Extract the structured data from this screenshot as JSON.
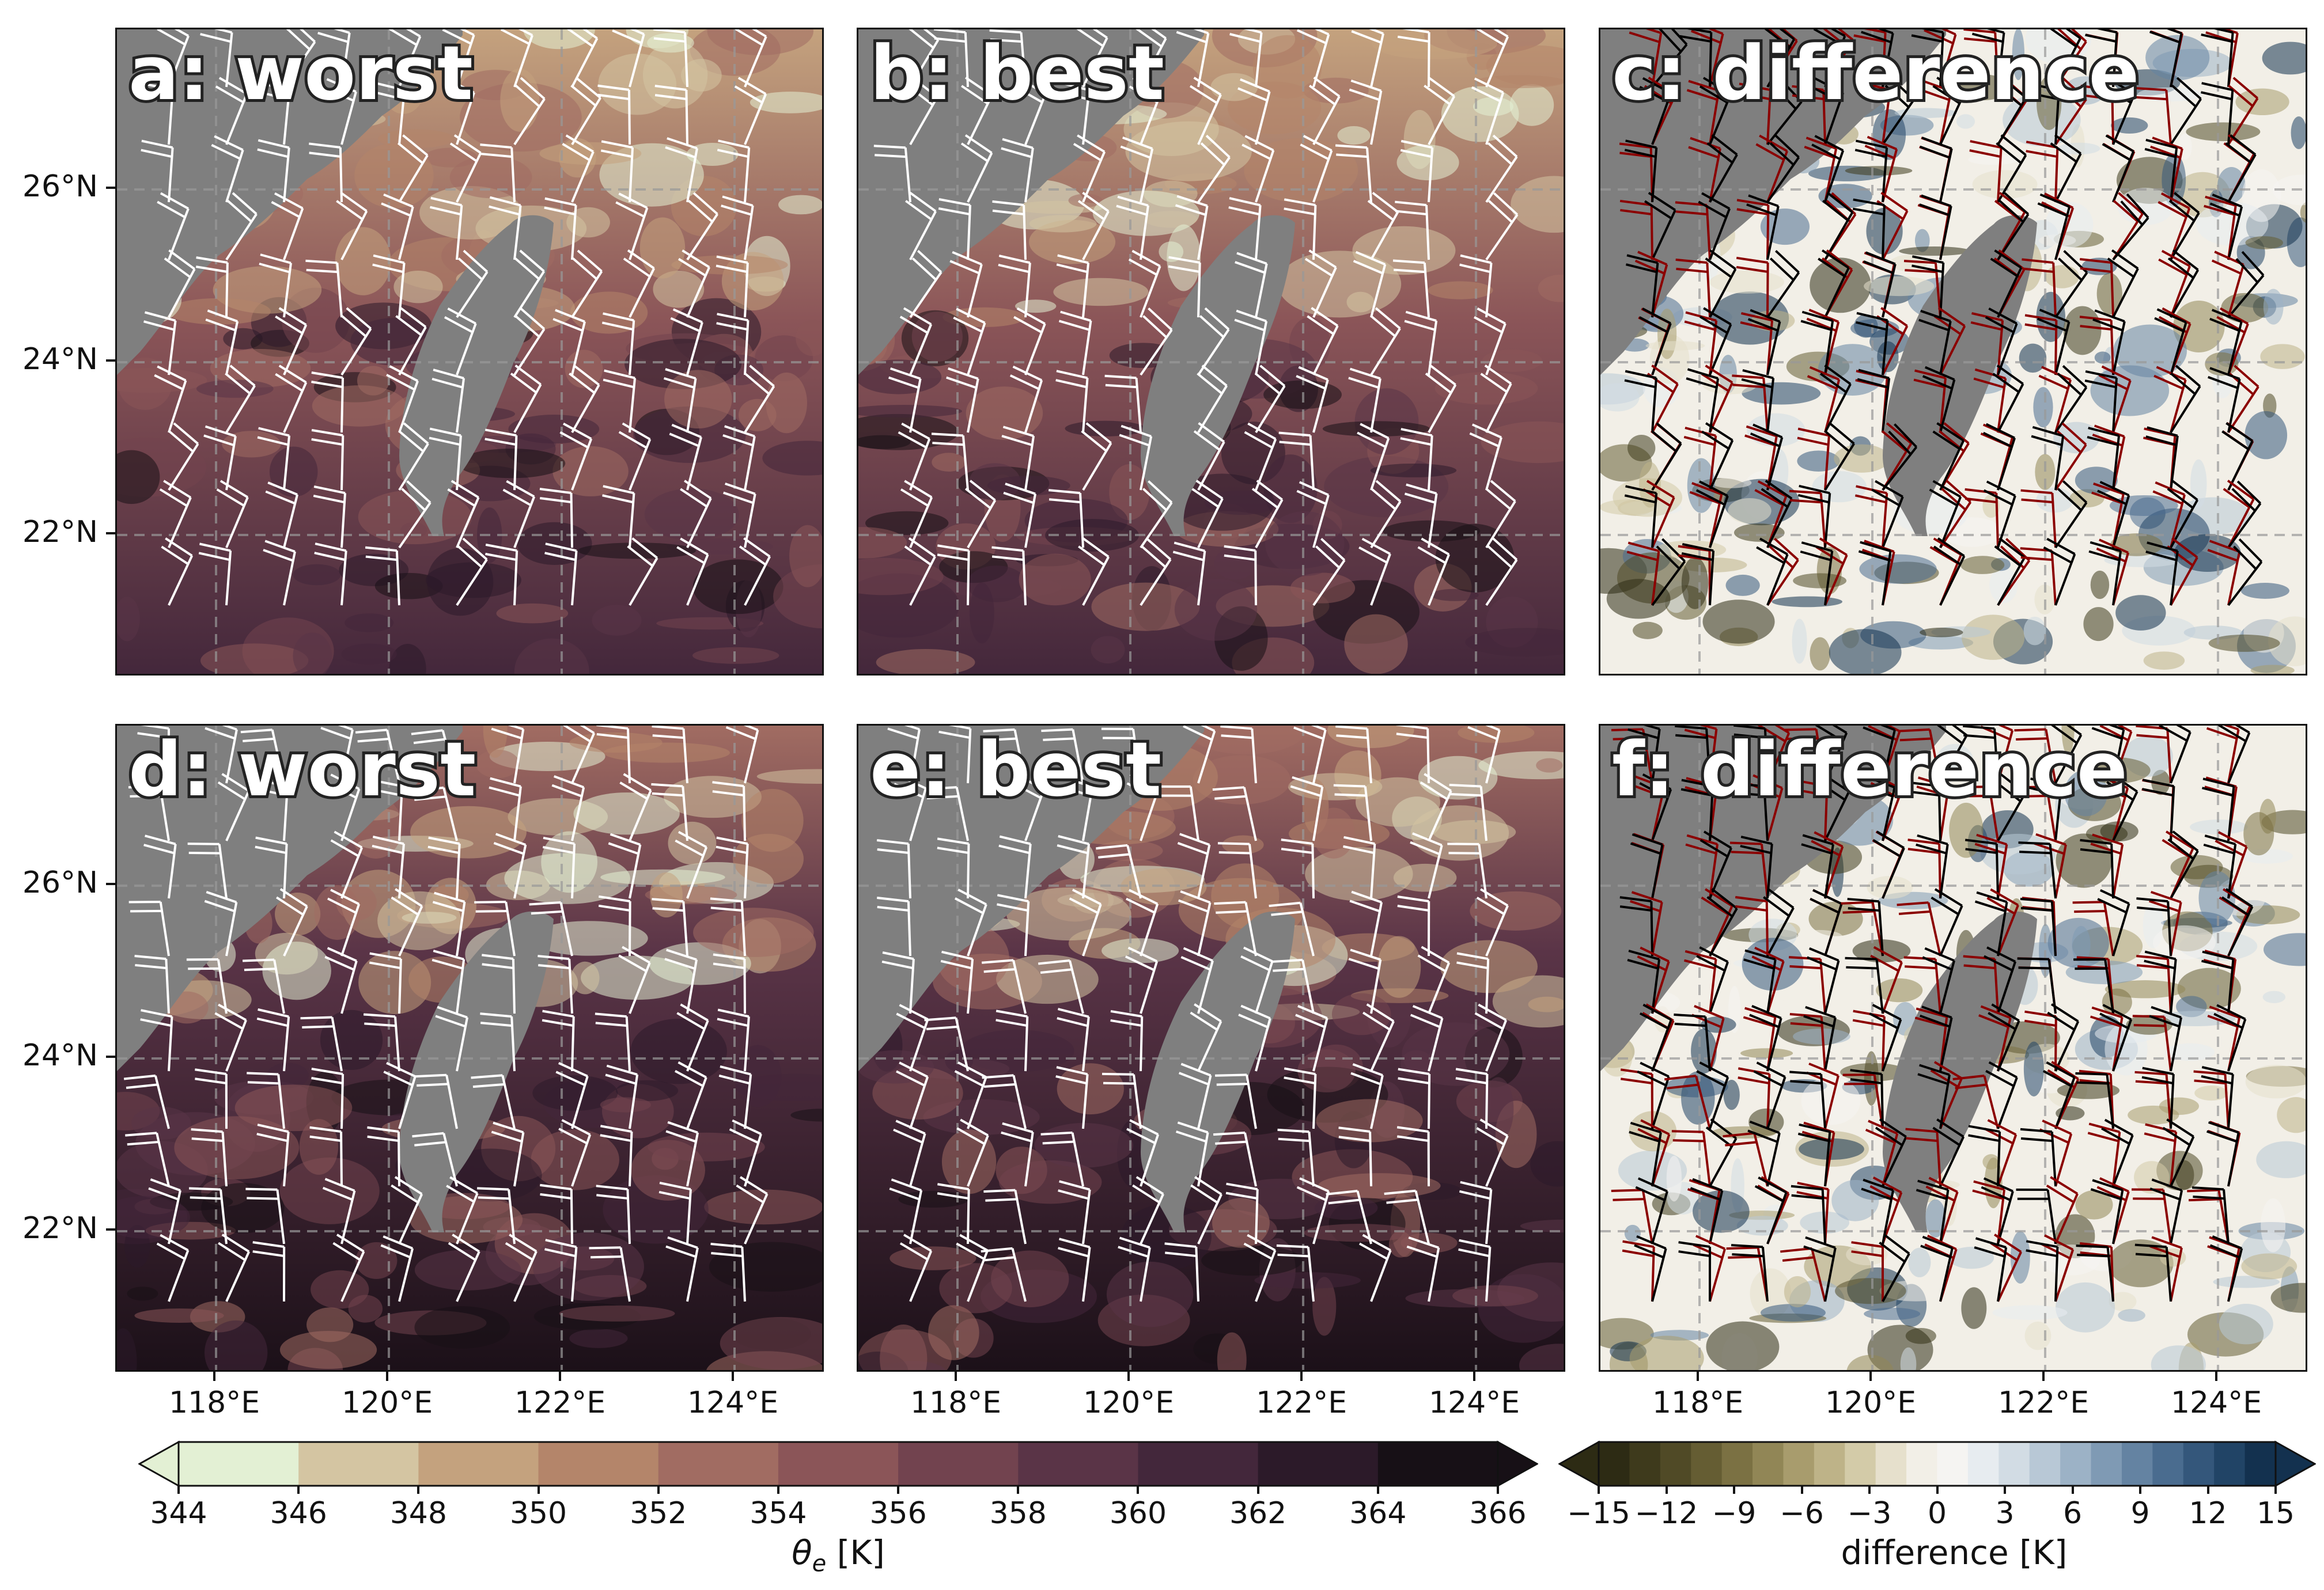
{
  "panels": [
    {
      "id": "a",
      "title": "a: worst",
      "kind": "theta"
    },
    {
      "id": "b",
      "title": "b: best",
      "kind": "theta"
    },
    {
      "id": "c",
      "title": "c: difference",
      "kind": "diff"
    },
    {
      "id": "d",
      "title": "d: worst",
      "kind": "theta"
    },
    {
      "id": "e",
      "title": "e: best",
      "kind": "theta"
    },
    {
      "id": "f",
      "title": "f: difference",
      "kind": "diff"
    }
  ],
  "axes": {
    "lat_labels": [
      "26°N",
      "24°N",
      "22°N"
    ],
    "lon_labels": [
      "118°E",
      "120°E",
      "122°E",
      "124°E"
    ]
  },
  "colorbars": {
    "theta": {
      "title": "θe [K]",
      "ticks": [
        "344",
        "346",
        "348",
        "350",
        "352",
        "354",
        "356",
        "358",
        "360",
        "362",
        "364",
        "366"
      ],
      "colors": [
        "#e3f0d4",
        "#d4c5a2",
        "#c4a27e",
        "#b4856a",
        "#a16c62",
        "#8b5558",
        "#72434f",
        "#5a3447",
        "#43273b",
        "#2c1a29",
        "#171016"
      ]
    },
    "diff": {
      "title": "difference [K]",
      "ticks": [
        "−15",
        "−12",
        "−9",
        "−6",
        "−3",
        "0",
        "3",
        "6",
        "9",
        "12",
        "15"
      ],
      "colors": [
        "#2d2b14",
        "#3e3a1c",
        "#504a26",
        "#655d33",
        "#7b7143",
        "#918656",
        "#a89c6d",
        "#beb388",
        "#d3cba8",
        "#e6e0cc",
        "#f2efe7",
        "#f5f4f2",
        "#e7ecf0",
        "#d2dce4",
        "#b8c8d6",
        "#9cb2c6",
        "#7f9ab4",
        "#6483a2",
        "#4a6c8f",
        "#34577b",
        "#214466",
        "#13314f"
      ]
    }
  },
  "colors": {
    "land": "#7f7f7f",
    "frame": "#111111",
    "barb_theta": "#ffffff",
    "barb_worst": "#000000",
    "barb_best": "#8b0000"
  }
}
